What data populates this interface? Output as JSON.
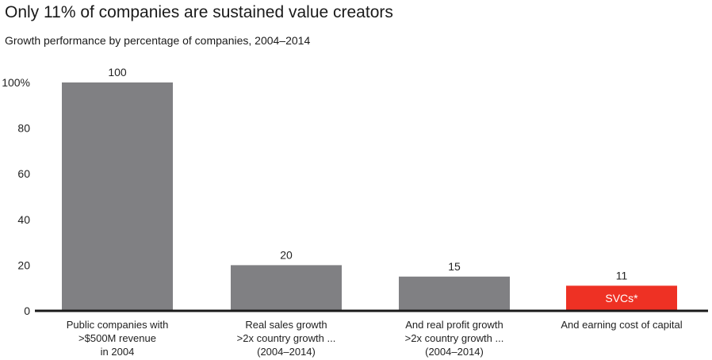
{
  "header": {
    "title": "Only 11% of companies are sustained value creators",
    "subtitle": "Growth performance by percentage of companies, 2004–2014"
  },
  "chart_data": {
    "type": "bar",
    "title": "Only 11% of companies are sustained value creators",
    "subtitle": "Growth performance by percentage of companies, 2004–2014",
    "xlabel": "",
    "ylabel": "",
    "ylim": [
      0,
      100
    ],
    "yticks": [
      {
        "value": 0,
        "label": "0"
      },
      {
        "value": 20,
        "label": "20"
      },
      {
        "value": 40,
        "label": "40"
      },
      {
        "value": 60,
        "label": "60"
      },
      {
        "value": 80,
        "label": "80"
      },
      {
        "value": 100,
        "label": "100%"
      }
    ],
    "categories": [
      [
        "Public companies with",
        ">$500M revenue",
        "in 2004"
      ],
      [
        "Real sales growth",
        ">2x country growth ...",
        "(2004–2014)"
      ],
      [
        "And real profit growth",
        ">2x country growth ...",
        "(2004–2014)"
      ],
      [
        "And earning cost of capital"
      ]
    ],
    "values": [
      100,
      20,
      15,
      11
    ],
    "value_labels": [
      "100",
      "20",
      "15",
      "11"
    ],
    "bar_colors": [
      "#808083",
      "#808083",
      "#808083",
      "#ee3124"
    ],
    "bar_inner_labels": [
      "",
      "",
      "",
      "SVCs*"
    ],
    "grid": false,
    "legend": "none",
    "axis_color": "#1a1a1a"
  }
}
